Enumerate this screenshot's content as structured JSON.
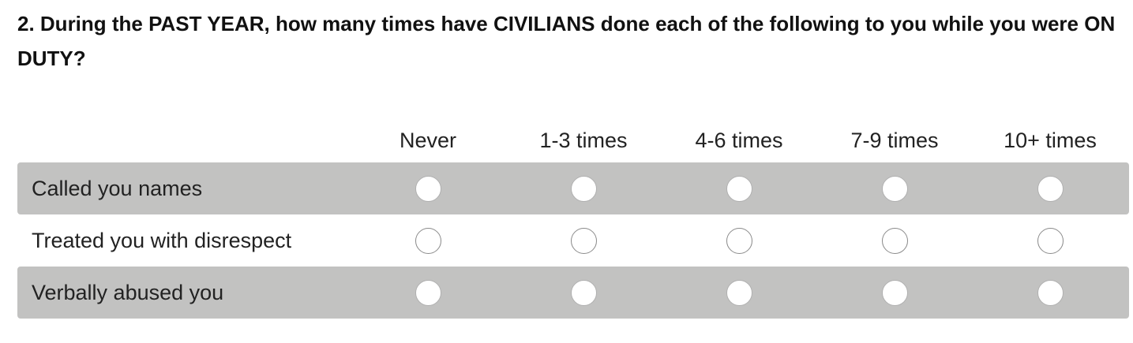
{
  "question": {
    "title": "2. During the PAST YEAR, how many times have CIVILIANS done each of the following to you while you were ON DUTY?"
  },
  "columns": [
    {
      "label": "Never"
    },
    {
      "label": "1-3 times"
    },
    {
      "label": "4-6 times"
    },
    {
      "label": "7-9 times"
    },
    {
      "label": "10+ times"
    }
  ],
  "rows": [
    {
      "label": "Called you names",
      "selected": null
    },
    {
      "label": "Treated you with disrespect",
      "selected": null
    },
    {
      "label": "Verbally abused you",
      "selected": null
    }
  ],
  "colors": {
    "shaded_row": "#c2c2c1",
    "radio_fill": "#ffffff"
  }
}
